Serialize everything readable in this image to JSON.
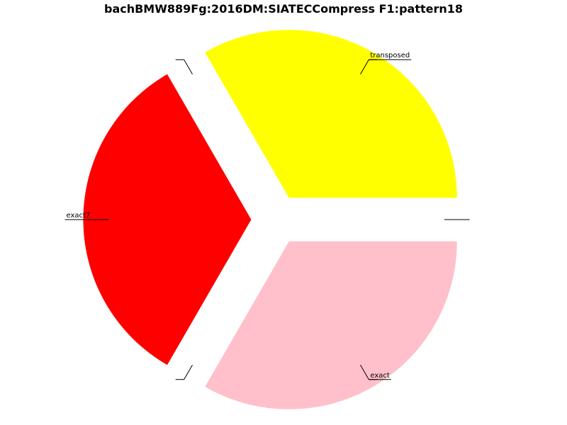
{
  "chart_data": {
    "type": "pie",
    "title": "bachBMW889Fg:2016DM:SIATECCompress F1:pattern18",
    "slices": [
      {
        "label": "transposed",
        "value": 1,
        "color": "#ffff00"
      },
      {
        "label": "",
        "value": 0,
        "color": "#0000ff"
      },
      {
        "label": "exact7",
        "value": 1,
        "color": "#ff0000"
      },
      {
        "label": "",
        "value": 0,
        "color": "#00ff00"
      },
      {
        "label": "exact",
        "value": 1,
        "color": "#ffc0cb"
      },
      {
        "label": "",
        "value": 0,
        "color": "#ff00ff"
      }
    ]
  }
}
